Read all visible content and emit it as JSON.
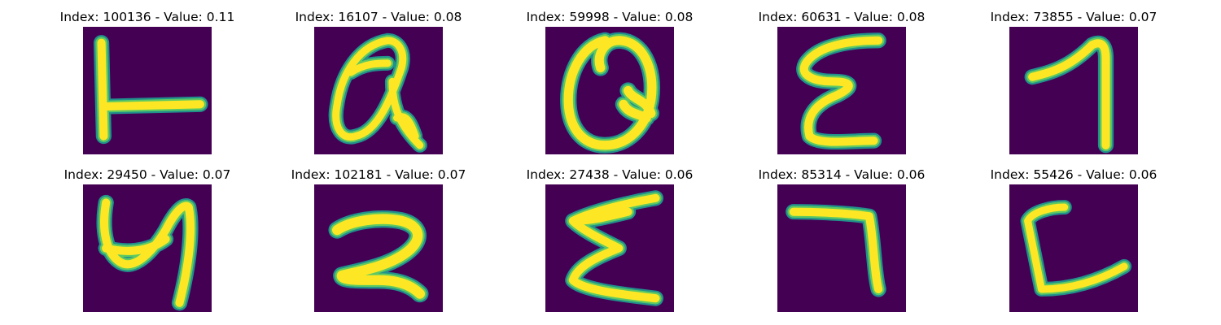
{
  "colors": {
    "background": "#440154",
    "stroke_core": "#fde725",
    "stroke_mid": "#5ec962",
    "stroke_edge": "#21918c"
  },
  "panels": [
    {
      "title": "Index: 100136 - Value: 0.11",
      "glyph": "T-rotated-like"
    },
    {
      "title": "Index: 16107 - Value: 0.08",
      "glyph": "Q-like"
    },
    {
      "title": "Index: 59998 - Value: 0.08",
      "glyph": "Q-like"
    },
    {
      "title": "Index: 60631 - Value: 0.08",
      "glyph": "E-like"
    },
    {
      "title": "Index: 73855 - Value: 0.07",
      "glyph": "7-like"
    },
    {
      "title": "Index: 29450 - Value: 0.07",
      "glyph": "4-like"
    },
    {
      "title": "Index: 102181 - Value: 0.07",
      "glyph": "2-like"
    },
    {
      "title": "Index: 27438 - Value: 0.06",
      "glyph": "Sigma-like"
    },
    {
      "title": "Index: 85314 - Value: 0.06",
      "glyph": "7-like"
    },
    {
      "title": "Index: 55426 - Value: 0.06",
      "glyph": "C-like"
    }
  ]
}
